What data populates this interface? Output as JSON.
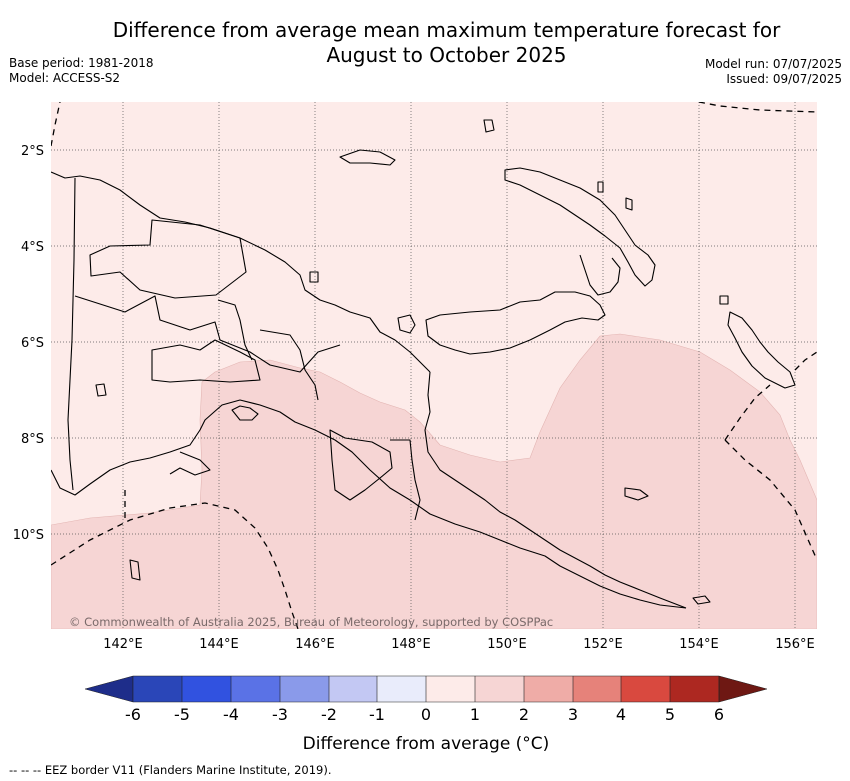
{
  "title_line1": "Difference from average mean maximum temperature forecast for",
  "title_line2": "August to October 2025",
  "base_period": "Base period: 1981-2018",
  "model": "Model: ACCESS-S2",
  "model_run": "Model run: 07/07/2025",
  "issued": "Issued: 09/07/2025",
  "map": {
    "lat_labels": [
      "2°S",
      "4°S",
      "6°S",
      "8°S",
      "10°S"
    ],
    "lon_labels": [
      "142°E",
      "144°E",
      "146°E",
      "148°E",
      "150°E",
      "152°E",
      "154°E",
      "156°E"
    ],
    "copyright": "© Commonwealth of Australia 2025, Bureau of Meteorology, supported by COSPPac",
    "colors": {
      "land": "#fdebe9",
      "warm_zone": "#f6d5d4",
      "coast": "#000000"
    }
  },
  "colorbar": {
    "ticks": [
      "-6",
      "-5",
      "-4",
      "-3",
      "-2",
      "-1",
      "0",
      "1",
      "2",
      "3",
      "4",
      "5",
      "6"
    ],
    "colors": [
      "#1e2d8a",
      "#2a46b8",
      "#3152e0",
      "#5a72e6",
      "#8a9aea",
      "#c3c8f3",
      "#e9ecfb",
      "#fdebe9",
      "#f6d5d4",
      "#efaca7",
      "#e6827a",
      "#d9493f",
      "#ad2821",
      "#6e1813"
    ],
    "label": "Difference from average (°C)"
  },
  "footer": "--  --  -- EEZ border V11 (Flanders Marine Institute, 2019)."
}
